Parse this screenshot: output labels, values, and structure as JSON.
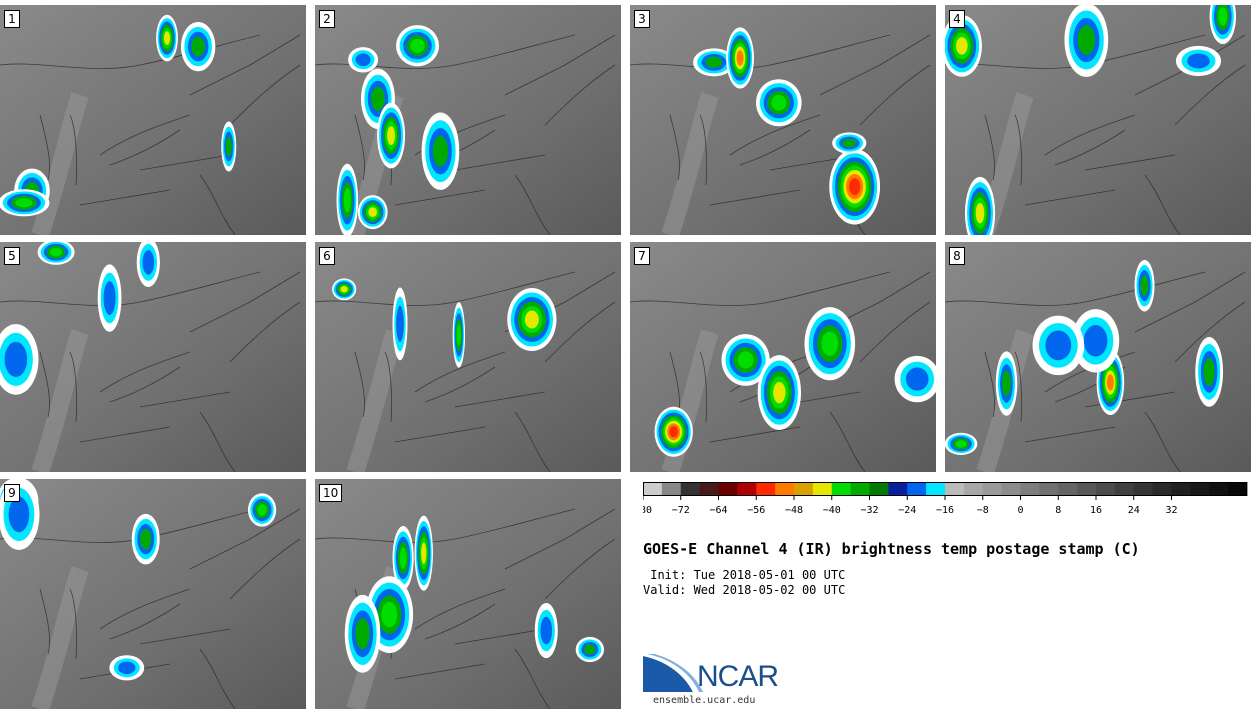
{
  "panels": [
    {
      "label": "1"
    },
    {
      "label": "2"
    },
    {
      "label": "3"
    },
    {
      "label": "4"
    },
    {
      "label": "5"
    },
    {
      "label": "6"
    },
    {
      "label": "7"
    },
    {
      "label": "8"
    },
    {
      "label": "9"
    },
    {
      "label": "10"
    }
  ],
  "colorbar": {
    "colors": [
      "#cccccc",
      "#888888",
      "#333333",
      "#4a1a1a",
      "#6b0000",
      "#b00000",
      "#ff2a00",
      "#ff7a00",
      "#d9a000",
      "#e6e600",
      "#00dd00",
      "#00aa00",
      "#007a00",
      "#0a1f9e",
      "#0066ee",
      "#00e6ff",
      "#bbbbbb",
      "#a8a8a8",
      "#9a9a9a",
      "#8c8c8c",
      "#7e7e7e",
      "#707070",
      "#646464",
      "#585858",
      "#4c4c4c",
      "#404040",
      "#353535",
      "#2a2a2a",
      "#202020",
      "#181818",
      "#101010",
      "#080808"
    ],
    "ticks": [
      "−80",
      "−72",
      "−64",
      "−56",
      "−48",
      "−40",
      "−32",
      "−24",
      "−16",
      "−8",
      "0",
      "8",
      "16",
      "24",
      "32"
    ]
  },
  "title": "GOES-E Channel 4 (IR) brightness temp postage stamp (C)",
  "init": " Init: Tue 2018-05-01 00 UTC",
  "valid": "Valid: Wed 2018-05-02 00 UTC",
  "logo_text": "NCAR",
  "site": "ensemble.ucar.edu"
}
